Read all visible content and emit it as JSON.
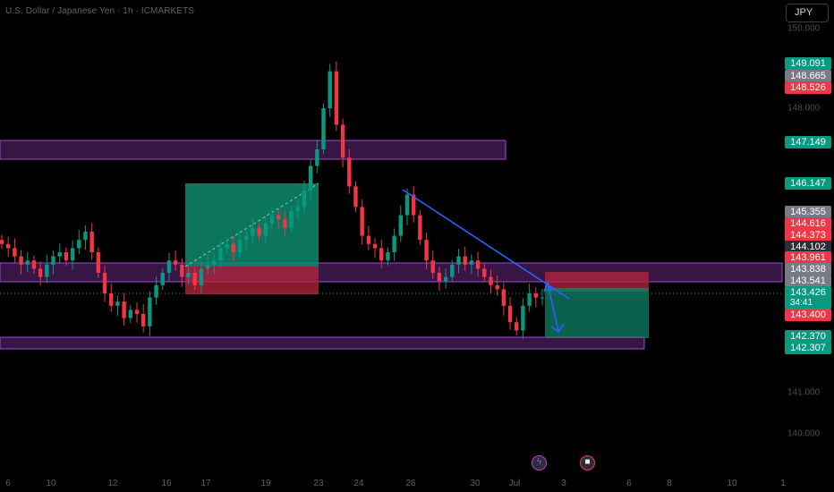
{
  "header": {
    "title": "U.S. Dollar / Japanese Yen · 1h · ICMARKETS",
    "currency": "JPY"
  },
  "price_axis": {
    "ticks": [
      "150.000",
      "148.000",
      "141.000",
      "140.000"
    ],
    "tags": [
      {
        "value": "149.091",
        "style": "green"
      },
      {
        "value": "148.665",
        "style": "gray"
      },
      {
        "value": "148.526",
        "style": "red"
      },
      {
        "value": "147.149",
        "style": "green"
      },
      {
        "value": "146.147",
        "style": "green"
      },
      {
        "value": "145.355",
        "style": "gray"
      },
      {
        "value": "144.616",
        "style": "red"
      },
      {
        "value": "144.373",
        "style": "red"
      },
      {
        "value": "144.102",
        "style": "gray"
      },
      {
        "value": "143.961",
        "style": "red"
      },
      {
        "value": "143.838",
        "style": "gray"
      },
      {
        "value": "143.541",
        "style": "gray"
      },
      {
        "value": "143.426",
        "style": "green"
      },
      {
        "value": "143.400",
        "style": "red"
      },
      {
        "value": "142.370",
        "style": "green"
      },
      {
        "value": "142.307",
        "style": "green"
      }
    ],
    "countdown": "34:41"
  },
  "time_axis": {
    "labels": [
      "6",
      "10",
      "12",
      "16",
      "17",
      "19",
      "23",
      "24",
      "26",
      "30",
      "Jul",
      "3",
      "6",
      "8",
      "10",
      "1"
    ]
  },
  "events": [
    {
      "icon": "lightning-icon",
      "glyph": "ϟ"
    },
    {
      "icon": "us-flag-icon",
      "glyph": "■"
    }
  ],
  "colors": {
    "background": "#000000",
    "up": "#089981",
    "down": "#f23645",
    "zone_fill": "#4a1d5c",
    "zone_border": "#9c4dcc",
    "trendline": "#2962ff"
  },
  "chart_data": {
    "type": "candlestick",
    "symbol": "USDJPY",
    "timeframe": "1h",
    "ylim": [
      140.0,
      150.0
    ],
    "last_price": 143.426,
    "key_levels": [
      149.091,
      148.665,
      148.526,
      147.149,
      146.147,
      145.355,
      144.616,
      144.373,
      144.102,
      143.961,
      143.838,
      143.541,
      143.426,
      143.4,
      142.37,
      142.307
    ],
    "closes": [
      144.7,
      144.6,
      144.4,
      144.2,
      144.3,
      144.1,
      143.9,
      144.2,
      144.4,
      144.5,
      144.3,
      144.6,
      144.8,
      145.0,
      144.5,
      144.0,
      143.5,
      143.2,
      143.3,
      142.9,
      143.1,
      143.0,
      142.7,
      143.4,
      143.7,
      144.0,
      144.3,
      144.2,
      143.9,
      144.0,
      143.7,
      144.1,
      144.2,
      144.3,
      144.6,
      144.7,
      144.5,
      144.8,
      144.9,
      145.1,
      144.9,
      145.2,
      145.4,
      145.3,
      145.1,
      145.5,
      145.6,
      146.0,
      146.6,
      147.0,
      148.0,
      148.9,
      147.6,
      146.8,
      146.1,
      145.6,
      144.9,
      144.7,
      144.6,
      144.3,
      144.5,
      144.9,
      145.4,
      145.9,
      145.4,
      144.8,
      144.3,
      144.0,
      143.8,
      143.9,
      144.2,
      144.4,
      144.2,
      144.3,
      144.1,
      143.9,
      143.7,
      143.6,
      143.2,
      142.8,
      142.6,
      143.2,
      143.5,
      143.4,
      143.4
    ]
  }
}
